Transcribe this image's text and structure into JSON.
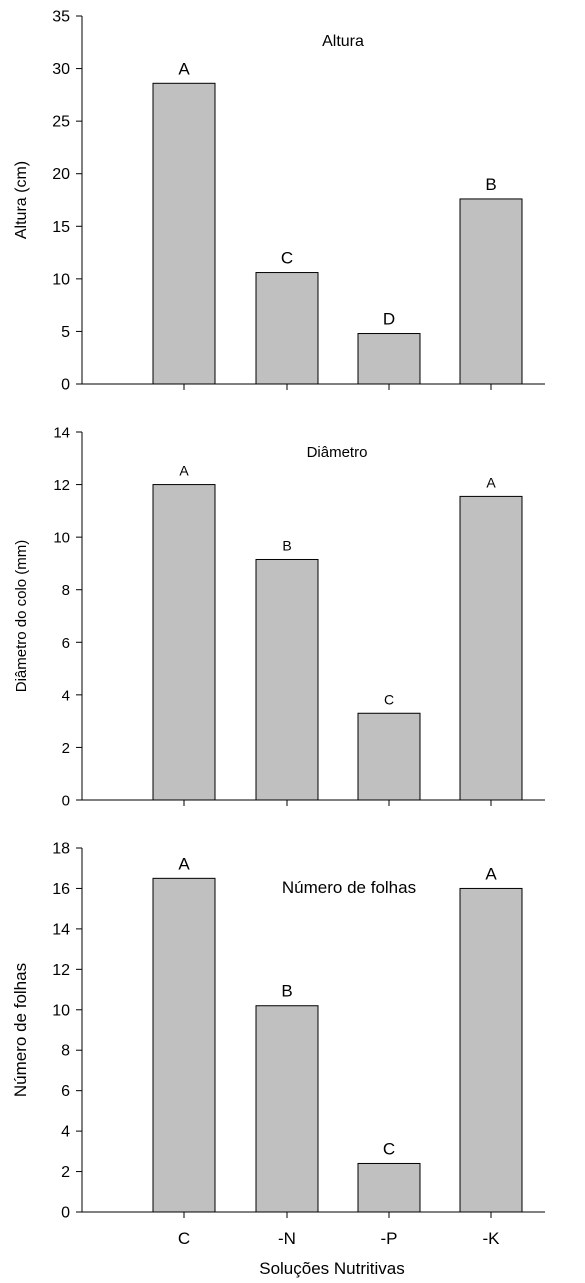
{
  "figure": {
    "bar_fill": "#c0c0c0",
    "bar_stroke": "#000000",
    "xlabel": "Soluções Nutritivas"
  },
  "chart_data": [
    {
      "type": "bar",
      "title": "Altura",
      "ylabel": "Altura (cm)",
      "xlabel": "",
      "categories": [
        "C",
        "-N",
        "-P",
        "-K"
      ],
      "values": [
        28.6,
        10.6,
        4.8,
        17.6
      ],
      "labels": [
        "A",
        "C",
        "D",
        "B"
      ],
      "ylim": [
        0,
        35
      ],
      "yticks": [
        0,
        5,
        10,
        15,
        20,
        25,
        30,
        35
      ],
      "show_xtick_labels": false,
      "grid": false
    },
    {
      "type": "bar",
      "title": "Diâmetro",
      "ylabel": "Diâmetro do colo (mm)",
      "xlabel": "",
      "categories": [
        "C",
        "-N",
        "-P",
        "-K"
      ],
      "values": [
        12.0,
        9.15,
        3.3,
        11.55
      ],
      "labels": [
        "A",
        "B",
        "C",
        "A"
      ],
      "ylim": [
        0,
        14
      ],
      "yticks": [
        0,
        2,
        4,
        6,
        8,
        10,
        12,
        14
      ],
      "show_xtick_labels": false,
      "grid": false
    },
    {
      "type": "bar",
      "title": "Número de folhas",
      "ylabel": "Número de folhas",
      "xlabel": "Soluções Nutritivas",
      "categories": [
        "C",
        "-N",
        "-P",
        "-K"
      ],
      "values": [
        16.5,
        10.2,
        2.4,
        16.0
      ],
      "labels": [
        "A",
        "B",
        "C",
        "A"
      ],
      "ylim": [
        0,
        18
      ],
      "yticks": [
        0,
        2,
        4,
        6,
        8,
        10,
        12,
        14,
        16,
        18
      ],
      "show_xtick_labels": true,
      "grid": false
    }
  ]
}
